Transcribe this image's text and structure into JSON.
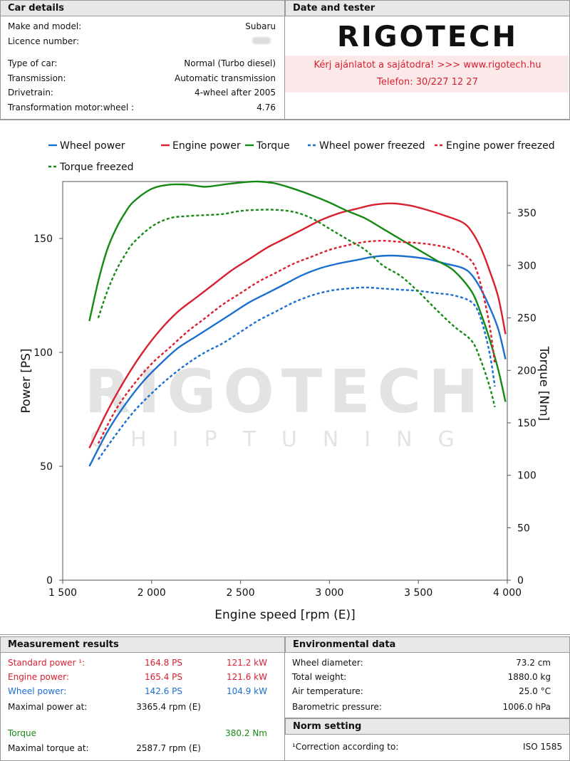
{
  "car_details": {
    "header": "Car details",
    "make_label": "Make and model:",
    "make_value": "Subaru",
    "licence_label": "Licence number:",
    "type_label": "Type of car:",
    "type_value": "Normal (Turbo diesel)",
    "transmission_label": "Transmission:",
    "transmission_value": "Automatic transmission",
    "drivetrain_label": "Drivetrain:",
    "drivetrain_value": "4-wheel after 2005",
    "ratio_label": "Transformation motor:wheel :",
    "ratio_value": "4.76"
  },
  "date_tester": {
    "header": "Date and tester",
    "logo_text": "RIGOTECH",
    "promo_line1": "Kérj ajánlatot a sajátodra!  >>>  www.rigotech.hu",
    "promo_line2": "Telefon: 30/227 12 27"
  },
  "watermark": {
    "brand": "RIGOTECH",
    "sub": "CHIPTUNING"
  },
  "colors": {
    "wheel": "#1a6fd1",
    "engine": "#d8202f",
    "torque": "#148a14",
    "accent": "#d8202f"
  },
  "chart_data": {
    "type": "line",
    "xlabel": "Engine speed [rpm (E)]",
    "ylabel": "Power [PS]",
    "y2label": "Torque [Nm]",
    "xlim": [
      1500,
      4000
    ],
    "ylim": [
      0,
      175
    ],
    "y2lim": [
      0,
      380
    ],
    "x_ticks": [
      1500,
      2000,
      2500,
      3000,
      3500,
      4000
    ],
    "x_tick_labels": [
      "1 500",
      "2 000",
      "2 500",
      "3 000",
      "3 500",
      "4 000"
    ],
    "y_ticks": [
      0,
      50,
      100,
      150
    ],
    "y2_ticks": [
      0,
      50,
      100,
      150,
      200,
      250,
      300,
      350
    ],
    "legend_position": "top",
    "series": [
      {
        "name": "Wheel power",
        "axis": "left",
        "color": "#1a6fd1",
        "dashed": false,
        "x": [
          1650,
          1750,
          1850,
          1950,
          2050,
          2150,
          2250,
          2350,
          2450,
          2550,
          2650,
          2750,
          2850,
          2950,
          3050,
          3150,
          3250,
          3350,
          3450,
          3550,
          3650,
          3750,
          3800,
          3850,
          3900,
          3950,
          3990
        ],
        "y": [
          50,
          65,
          77,
          87,
          95,
          102,
          107,
          112,
          117,
          122,
          126,
          130,
          134,
          137,
          139,
          140.5,
          142,
          142.5,
          142,
          141,
          139,
          137,
          134,
          128,
          120,
          110,
          97
        ]
      },
      {
        "name": "Engine power",
        "axis": "left",
        "color": "#d8202f",
        "dashed": false,
        "x": [
          1650,
          1750,
          1850,
          1950,
          2050,
          2150,
          2250,
          2350,
          2450,
          2550,
          2650,
          2750,
          2850,
          2950,
          3050,
          3150,
          3250,
          3350,
          3450,
          3550,
          3650,
          3750,
          3800,
          3850,
          3900,
          3950,
          3990
        ],
        "y": [
          58,
          74,
          88,
          100,
          110,
          118,
          124,
          130,
          136,
          141,
          146,
          150,
          154,
          158,
          161,
          163,
          164.8,
          165.4,
          164.5,
          162.5,
          160,
          157,
          153,
          146,
          136,
          124,
          108
        ]
      },
      {
        "name": "Torque",
        "axis": "right",
        "color": "#148a14",
        "dashed": false,
        "x": [
          1650,
          1700,
          1750,
          1800,
          1850,
          1900,
          2000,
          2100,
          2200,
          2300,
          2400,
          2500,
          2600,
          2700,
          2800,
          2900,
          3000,
          3100,
          3200,
          3300,
          3400,
          3500,
          3600,
          3700,
          3800,
          3850,
          3900,
          3950,
          3990
        ],
        "y": [
          247,
          285,
          315,
          335,
          350,
          361,
          373,
          377,
          377,
          375,
          377,
          379,
          380,
          378,
          373,
          367,
          360,
          352,
          345,
          335,
          325,
          315,
          305,
          295,
          275,
          255,
          230,
          200,
          170
        ]
      },
      {
        "name": "Wheel power freezed",
        "axis": "left",
        "color": "#1a6fd1",
        "dashed": true,
        "x": [
          1700,
          1800,
          1900,
          2000,
          2100,
          2200,
          2300,
          2400,
          2500,
          2600,
          2700,
          2800,
          2900,
          3000,
          3100,
          3200,
          3300,
          3400,
          3500,
          3600,
          3700,
          3800,
          3850,
          3900,
          3930
        ],
        "y": [
          53,
          64,
          74,
          82,
          89,
          95,
          100,
          104,
          109,
          114,
          118,
          122,
          125,
          127,
          128,
          128.5,
          128,
          127.5,
          127,
          126,
          125,
          122,
          115,
          100,
          85
        ]
      },
      {
        "name": "Engine power freezed",
        "axis": "left",
        "color": "#d8202f",
        "dashed": true,
        "x": [
          1700,
          1800,
          1900,
          2000,
          2100,
          2200,
          2300,
          2400,
          2500,
          2600,
          2700,
          2800,
          2900,
          3000,
          3100,
          3200,
          3300,
          3400,
          3500,
          3600,
          3700,
          3800,
          3850,
          3900,
          3930
        ],
        "y": [
          60,
          75,
          86,
          95,
          102,
          109,
          115,
          121,
          126,
          131,
          135,
          139,
          142,
          145,
          147,
          148.5,
          149,
          148.5,
          148,
          147,
          145,
          140,
          130,
          112,
          95
        ]
      },
      {
        "name": "Torque freezed",
        "axis": "right",
        "color": "#148a14",
        "dashed": true,
        "x": [
          1700,
          1750,
          1800,
          1850,
          1900,
          2000,
          2100,
          2200,
          2300,
          2400,
          2500,
          2600,
          2700,
          2800,
          2900,
          3000,
          3100,
          3200,
          3300,
          3400,
          3500,
          3600,
          3700,
          3800,
          3850,
          3900,
          3930
        ],
        "y": [
          250,
          275,
          295,
          310,
          322,
          337,
          345,
          347,
          348,
          349,
          352,
          353,
          353,
          351,
          345,
          335,
          325,
          315,
          300,
          290,
          275,
          258,
          242,
          228,
          210,
          185,
          165
        ]
      }
    ]
  },
  "measurement": {
    "header": "Measurement results",
    "standard_label": "Standard power ¹:",
    "standard_ps": "164.8 PS",
    "standard_kw": "121.2 kW",
    "engine_label": "Engine power:",
    "engine_ps": "165.4 PS",
    "engine_kw": "121.6 kW",
    "wheel_label": "Wheel power:",
    "wheel_ps": "142.6 PS",
    "wheel_kw": "104.9 kW",
    "maxpower_label": "Maximal power at:",
    "maxpower_value": "3365.4 rpm (E)",
    "torque_label": "Torque",
    "torque_value": "380.2 Nm",
    "maxtorque_label": "Maximal torque at:",
    "maxtorque_value": "2587.7 rpm (E)"
  },
  "environment": {
    "header": "Environmental data",
    "wheel_diam_label": "Wheel diameter:",
    "wheel_diam_value": "73.2 cm",
    "weight_label": "Total weight:",
    "weight_value": "1880.0 kg",
    "air_label": "Air temperature:",
    "air_value": "25.0 °C",
    "baro_label": "Barometric pressure:",
    "baro_value": "1006.0 hPa"
  },
  "norm": {
    "header": "Norm setting",
    "correction_label": "¹Correction according to:",
    "correction_value": "ISO 1585"
  }
}
